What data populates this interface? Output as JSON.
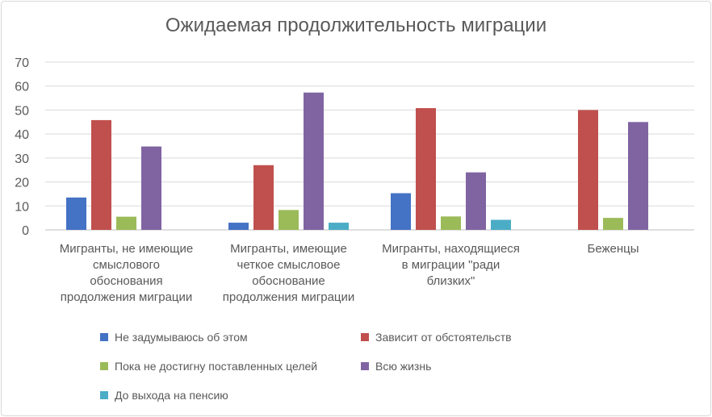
{
  "chart_data": {
    "type": "bar",
    "title": "Ожидаемая продолжительность миграции",
    "categories": [
      "Мигранты, не имеющие смыслового обоснования продолжения миграции",
      "Мигранты, имеющие четкое смысловое обоснование продолжения миграции",
      "Мигранты, находящиеся в миграции \"ради близких\"",
      "Беженцы"
    ],
    "category_lines": [
      [
        "Мигранты, не имеющие",
        "смыслового",
        "обоснования",
        "продолжения миграции"
      ],
      [
        "Мигранты, имеющие",
        "четкое смысловое",
        "обоснование",
        "продолжения миграции"
      ],
      [
        "Мигранты, находящиеся",
        "в миграции \"ради",
        "близких\""
      ],
      [
        "Беженцы"
      ]
    ],
    "series": [
      {
        "name": "Не задумываюсь об этом",
        "color": "#4472c4",
        "values": [
          13.5,
          3,
          15.3,
          0
        ]
      },
      {
        "name": "Зависит от обстоятельств",
        "color": "#c0504d",
        "values": [
          45.8,
          27,
          50.8,
          50
        ]
      },
      {
        "name": "Пока не достигну поставленных целей",
        "color": "#9bbb59",
        "values": [
          5.5,
          8.3,
          5.6,
          5
        ]
      },
      {
        "name": "Всю жизнь",
        "color": "#8064a2",
        "values": [
          34.8,
          57.3,
          24,
          45
        ]
      },
      {
        "name": "До выхода на пенсию",
        "color": "#4bacc6",
        "values": [
          0,
          3,
          4.2,
          0
        ]
      }
    ],
    "y_ticks": [
      "0",
      "10",
      "20",
      "30",
      "40",
      "50",
      "60",
      "70"
    ],
    "ylim": [
      0,
      70
    ],
    "grid": true,
    "legend_position": "bottom"
  }
}
